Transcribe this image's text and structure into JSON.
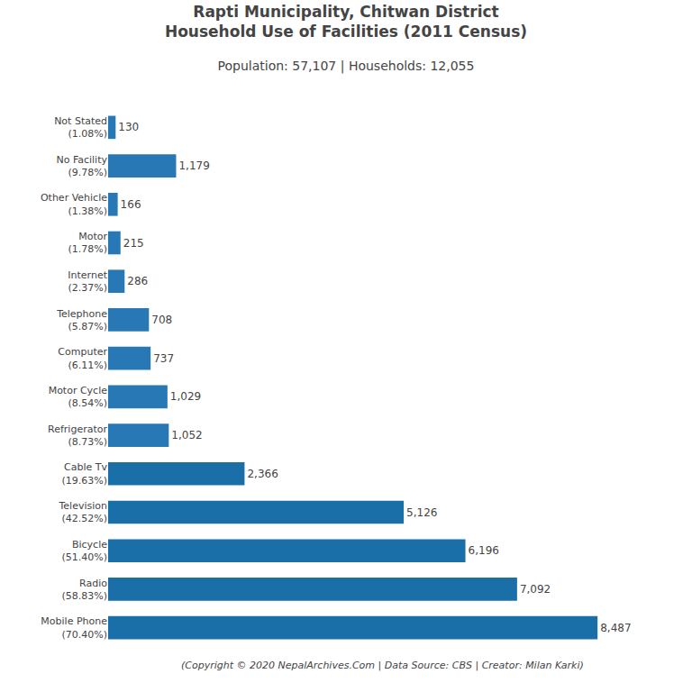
{
  "chart_data": {
    "type": "bar",
    "orientation": "horizontal",
    "title": "Rapti Municipality, Chitwan District\nHousehold Use of Facilities (2011 Census)",
    "subtitle": "Population: 57,107 | Households: 12,055",
    "annotations": [
      "(Copyright © 2020 NepalArchives.Com | Data Source: CBS | Creator: Milan Karki)"
    ],
    "categories": [
      "Mobile Phone\n(70.40%)",
      "Radio\n(58.83%)",
      "Bicycle\n(51.40%)",
      "Television\n(42.52%)",
      "Cable Tv\n(19.63%)",
      "Refrigerator\n(8.73%)",
      "Motor Cycle\n(8.54%)",
      "Computer\n(6.11%)",
      "Telephone\n(5.87%)",
      "Internet\n(2.37%)",
      "Motor\n(1.78%)",
      "Other Vehicle\n(1.38%)",
      "No Facility\n(9.78%)",
      "Not Stated\n(1.08%)"
    ],
    "values": [
      8487,
      7092,
      6196,
      5126,
      2366,
      1052,
      1029,
      737,
      708,
      286,
      215,
      166,
      1179,
      130
    ],
    "value_labels": [
      "8,487",
      "7,092",
      "6,196",
      "5,126",
      "2,366",
      "1,052",
      "1,029",
      "737",
      "708",
      "286",
      "215",
      "166",
      "1,179",
      "130"
    ],
    "colors": [
      "#1a6fa8",
      "#1a6fa8",
      "#1a6fa8",
      "#1a6fa8",
      "#1a6fa8",
      "#2878b5",
      "#2878b5",
      "#2878b5",
      "#2878b5",
      "#2878b5",
      "#2878b5",
      "#2878b5",
      "#2878b5",
      "#2878b5"
    ],
    "xlim": [
      0,
      9500
    ],
    "data_labels": true,
    "tick_labels": "y",
    "grid": false
  }
}
